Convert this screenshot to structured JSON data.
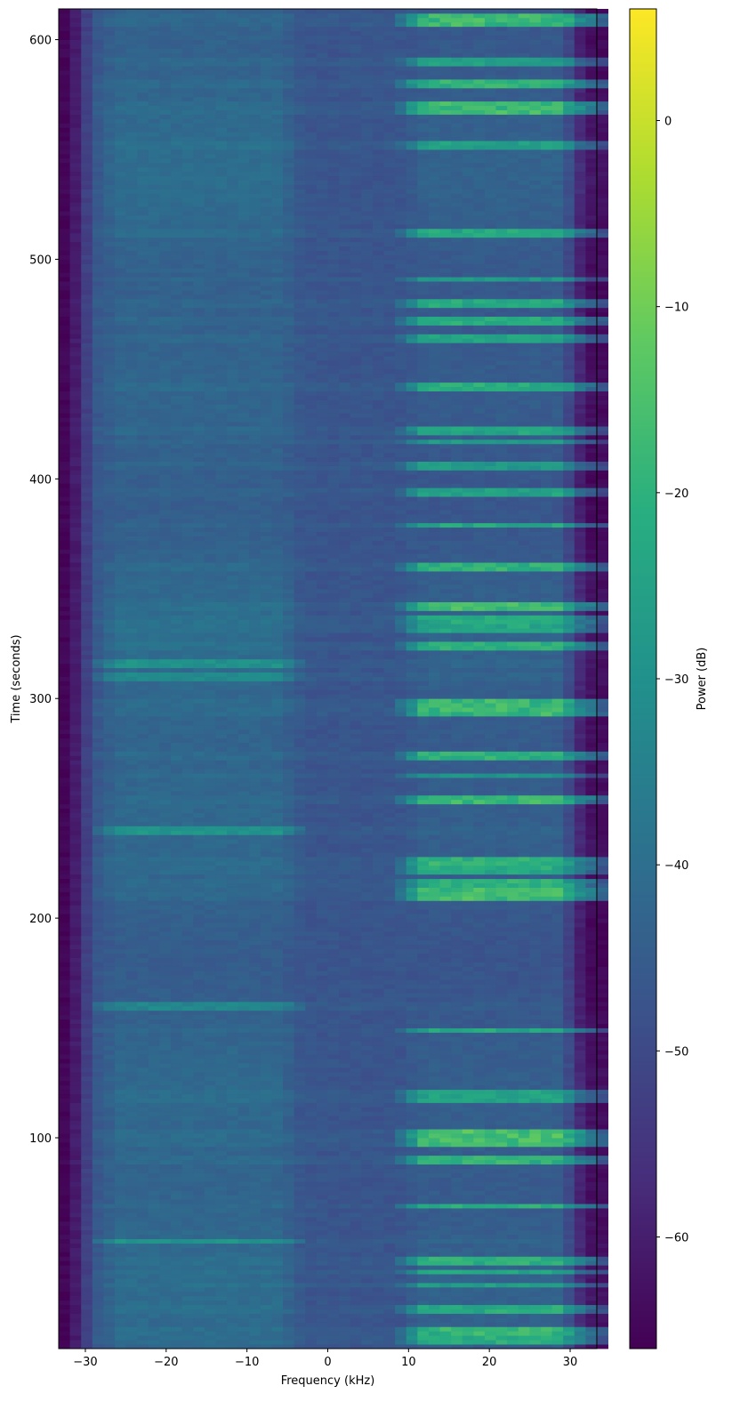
{
  "chart_data": {
    "type": "heatmap",
    "title": "",
    "xlabel": "Frequency (kHz)",
    "ylabel": "Time (seconds)",
    "colorbar_label": "Power (dB)",
    "colormap": "viridis",
    "xlim": [
      -33.3,
      33.3
    ],
    "ylim": [
      4,
      614
    ],
    "x_ticks": [
      -30,
      -20,
      -10,
      0,
      10,
      20,
      30
    ],
    "x_tick_labels": [
      "−30",
      "−20",
      "−10",
      "0",
      "10",
      "20",
      "30"
    ],
    "y_ticks": [
      100,
      200,
      300,
      400,
      500,
      600
    ],
    "y_tick_labels": [
      "100",
      "200",
      "300",
      "400",
      "500",
      "600"
    ],
    "clim": [
      -66,
      6
    ],
    "colorbar_ticks": [
      0,
      -10,
      -20,
      -30,
      -40,
      -50,
      -60
    ],
    "colorbar_tick_labels": [
      "0",
      "−10",
      "−20",
      "−30",
      "−40",
      "−50",
      "−60"
    ],
    "background_power_db": -47,
    "edge_power_db": -65,
    "signal_regions": [
      {
        "name": "upper band",
        "freq_range_khz": [
          12,
          33
        ],
        "typical_power_db": -25,
        "peak_power_db": -12
      },
      {
        "name": "lower band",
        "freq_range_khz": [
          -26,
          -6
        ],
        "typical_power_db": -40,
        "peak_power_db": -33
      }
    ],
    "bursts": [
      {
        "t_start": 6,
        "t_end": 9,
        "band": "upper",
        "power_db": -22
      },
      {
        "t_start": 10,
        "t_end": 14,
        "band": "upper",
        "power_db": -20
      },
      {
        "t_start": 21,
        "t_end": 23,
        "band": "upper",
        "power_db": -24
      },
      {
        "t_start": 32,
        "t_end": 34,
        "band": "upper",
        "power_db": -28
      },
      {
        "t_start": 38,
        "t_end": 40,
        "band": "upper",
        "power_db": -26
      },
      {
        "t_start": 43,
        "t_end": 45,
        "band": "upper",
        "power_db": -22
      },
      {
        "t_start": 52,
        "t_end": 54,
        "band": "lower",
        "power_db": -34
      },
      {
        "t_start": 68,
        "t_end": 70,
        "band": "upper",
        "power_db": -22
      },
      {
        "t_start": 89,
        "t_end": 92,
        "band": "upper",
        "power_db": -20
      },
      {
        "t_start": 97,
        "t_end": 104,
        "band": "upper",
        "power_db": -16
      },
      {
        "t_start": 116,
        "t_end": 122,
        "band": "upper",
        "power_db": -26
      },
      {
        "t_start": 148,
        "t_end": 150,
        "band": "upper",
        "power_db": -24
      },
      {
        "t_start": 158,
        "t_end": 161,
        "band": "lower",
        "power_db": -36
      },
      {
        "t_start": 208,
        "t_end": 213,
        "band": "upper",
        "power_db": -16
      },
      {
        "t_start": 215,
        "t_end": 218,
        "band": "upper",
        "power_db": -20
      },
      {
        "t_start": 220,
        "t_end": 223,
        "band": "upper",
        "power_db": -22
      },
      {
        "t_start": 225,
        "t_end": 228,
        "band": "upper",
        "power_db": -20
      },
      {
        "t_start": 238,
        "t_end": 242,
        "band": "lower",
        "power_db": -34
      },
      {
        "t_start": 253,
        "t_end": 256,
        "band": "upper",
        "power_db": -18
      },
      {
        "t_start": 264,
        "t_end": 266,
        "band": "upper",
        "power_db": -30
      },
      {
        "t_start": 272,
        "t_end": 275,
        "band": "upper",
        "power_db": -20
      },
      {
        "t_start": 293,
        "t_end": 299,
        "band": "upper",
        "power_db": -18
      },
      {
        "t_start": 308,
        "t_end": 311,
        "band": "lower",
        "power_db": -38
      },
      {
        "t_start": 314,
        "t_end": 317,
        "band": "lower",
        "power_db": -36
      },
      {
        "t_start": 323,
        "t_end": 326,
        "band": "upper",
        "power_db": -22
      },
      {
        "t_start": 330,
        "t_end": 333,
        "band": "upper",
        "power_db": -26
      },
      {
        "t_start": 335,
        "t_end": 337,
        "band": "upper",
        "power_db": -24
      },
      {
        "t_start": 340,
        "t_end": 344,
        "band": "upper",
        "power_db": -18
      },
      {
        "t_start": 358,
        "t_end": 361,
        "band": "upper",
        "power_db": -20
      },
      {
        "t_start": 378,
        "t_end": 380,
        "band": "upper",
        "power_db": -22
      },
      {
        "t_start": 393,
        "t_end": 395,
        "band": "upper",
        "power_db": -24
      },
      {
        "t_start": 405,
        "t_end": 408,
        "band": "upper",
        "power_db": -26
      },
      {
        "t_start": 416,
        "t_end": 418,
        "band": "upper",
        "power_db": -28
      },
      {
        "t_start": 420,
        "t_end": 423,
        "band": "upper",
        "power_db": -24
      },
      {
        "t_start": 440,
        "t_end": 443,
        "band": "upper",
        "power_db": -22
      },
      {
        "t_start": 462,
        "t_end": 465,
        "band": "upper",
        "power_db": -24
      },
      {
        "t_start": 471,
        "t_end": 474,
        "band": "upper",
        "power_db": -20
      },
      {
        "t_start": 478,
        "t_end": 481,
        "band": "upper",
        "power_db": -22
      },
      {
        "t_start": 490,
        "t_end": 492,
        "band": "upper",
        "power_db": -28
      },
      {
        "t_start": 510,
        "t_end": 513,
        "band": "upper",
        "power_db": -24
      },
      {
        "t_start": 550,
        "t_end": 553,
        "band": "upper",
        "power_db": -28
      },
      {
        "t_start": 567,
        "t_end": 572,
        "band": "upper",
        "power_db": -18
      },
      {
        "t_start": 579,
        "t_end": 582,
        "band": "upper",
        "power_db": -20
      },
      {
        "t_start": 589,
        "t_end": 591,
        "band": "upper",
        "power_db": -26
      },
      {
        "t_start": 607,
        "t_end": 612,
        "band": "upper",
        "power_db": -16
      }
    ]
  }
}
